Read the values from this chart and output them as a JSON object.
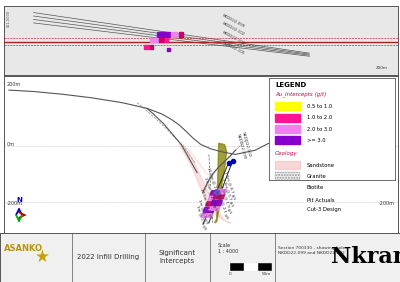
{
  "title": "Nkran",
  "subtitle_left": "2022 Infill Drilling",
  "subtitle_center": "Significant\nIntercepts",
  "subtitle_right": "Section 700330 - showing holes\nNKDD22-099 and NKDD22-102",
  "company": "ASANKO",
  "legend_title": "LEGEND",
  "legend_subtitle": "Au_Intercepts (g/t)",
  "legend_items": [
    {
      "label": "0.5 to 1.0",
      "color": "#ffff00"
    },
    {
      "label": "1.0 to 2.0",
      "color": "#ff1493"
    },
    {
      "label": "2.0 to 3.0",
      "color": "#ee82ee"
    },
    {
      "label": ">= 3.0",
      "color": "#8800cc"
    }
  ],
  "legend_geology_title": "Geology",
  "legend_geology_items": [
    {
      "label": "Sandstone",
      "color": "#f5c6c6"
    },
    {
      "label": "Granite",
      "color": "#ddddee"
    },
    {
      "label": "Biotite",
      "color": "#808000"
    }
  ],
  "legend_line_items": [
    {
      "label": "Pit Actuals",
      "style": "solid",
      "color": "#333333"
    },
    {
      "label": "Cut-3 Design",
      "style": "dashed",
      "color": "#888888"
    }
  ],
  "bg_white": "#ffffff",
  "bg_plan": "#e8e8e8",
  "bg_footer": "#f0f0f0",
  "border": "#555555",
  "section_red": "#aa2222",
  "sandstone_pink": "#f5c6c6",
  "biotite_olive": "#808000",
  "drill_gray": "#444444",
  "intercept_purple": "#8800cc",
  "intercept_pink": "#ee82ee",
  "intercept_magenta": "#cc0066",
  "intercept_red": "#ff1493",
  "collar_blue": "#0000cc",
  "compass_blue": "#0000bb",
  "compass_red": "#cc0000",
  "compass_green": "#00aa00"
}
